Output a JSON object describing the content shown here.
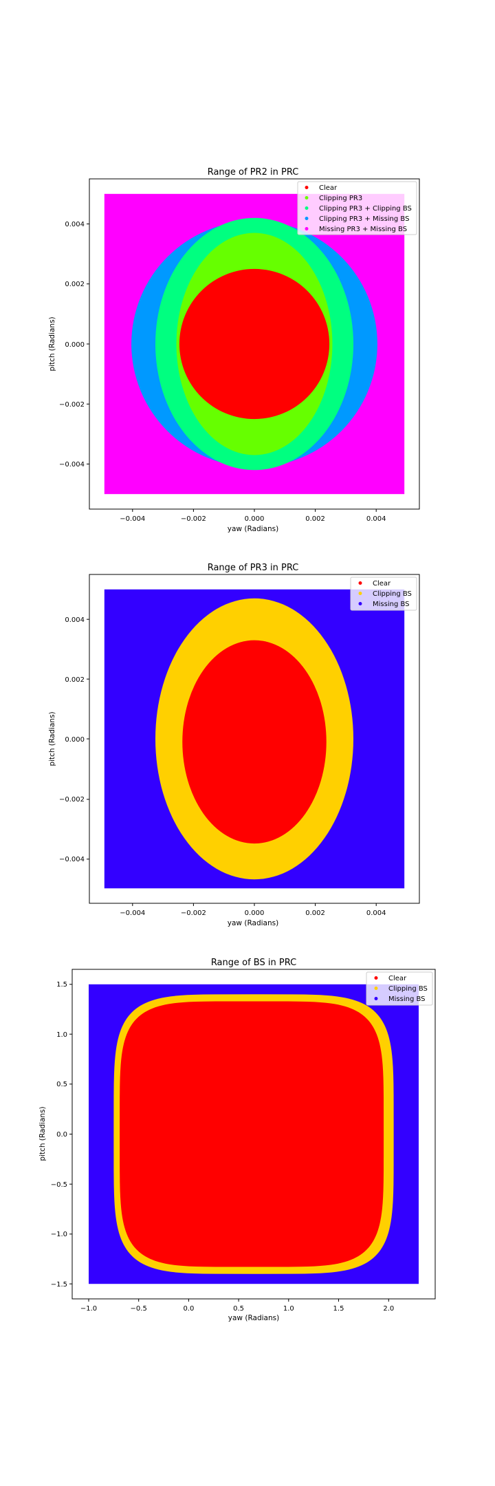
{
  "chart_data": [
    {
      "type": "scatter",
      "title": "Range of PR2 in PRC",
      "xlabel": "yaw (Radians)",
      "ylabel": "pitch (Radians)",
      "xlim": [
        -0.0055,
        0.0055
      ],
      "ylim": [
        -0.0055,
        0.0055
      ],
      "data_extent": {
        "x": [
          -0.005,
          0.005
        ],
        "y": [
          -0.005,
          0.005
        ]
      },
      "xticks": [
        -0.004,
        -0.002,
        0.0,
        0.002,
        0.004
      ],
      "xtick_labels": [
        "−0.004",
        "−0.002",
        "0.000",
        "0.002",
        "0.004"
      ],
      "yticks": [
        -0.004,
        -0.002,
        0.0,
        0.002,
        0.004
      ],
      "ytick_labels": [
        "−0.004",
        "−0.002",
        "0.000",
        "0.002",
        "0.004"
      ],
      "legend_position": "top-right",
      "series": [
        {
          "name": "Clear",
          "color": "#ff0000",
          "region": {
            "shape": "ellipse",
            "cx": 0.0,
            "cy": 0.0,
            "rx": 0.0025,
            "ry": 0.0025
          }
        },
        {
          "name": "Clipping PR3",
          "color": "#66ff00",
          "region": {
            "shape": "ellipse",
            "cx": 0.0,
            "cy": 0.0,
            "rx": 0.0026,
            "ry": 0.0037
          }
        },
        {
          "name": "Clipping PR3 + Clipping BS",
          "color": "#00ff80",
          "region": {
            "shape": "ellipse",
            "cx": 0.0,
            "cy": 0.0,
            "rx": 0.0033,
            "ry": 0.0042
          }
        },
        {
          "name": "Clipping PR3 + Missing BS",
          "color": "#0099ff",
          "region": {
            "shape": "ellipse",
            "cx": 0.0,
            "cy": 0.0,
            "rx": 0.0041,
            "ry": 0.0041
          }
        },
        {
          "name": "Missing PR3 + Missing BS",
          "color": "#ff00ff",
          "region": {
            "shape": "rect",
            "x": [
              -0.005,
              0.005
            ],
            "y": [
              -0.005,
              0.005
            ]
          }
        }
      ]
    },
    {
      "type": "scatter",
      "title": "Range of PR3 in PRC",
      "xlabel": "yaw (Radians)",
      "ylabel": "pitch (Radians)",
      "xlim": [
        -0.0055,
        0.0055
      ],
      "ylim": [
        -0.0055,
        0.0055
      ],
      "data_extent": {
        "x": [
          -0.005,
          0.005
        ],
        "y": [
          -0.005,
          0.005
        ]
      },
      "xticks": [
        -0.004,
        -0.002,
        0.0,
        0.002,
        0.004
      ],
      "xtick_labels": [
        "−0.004",
        "−0.002",
        "0.000",
        "0.002",
        "0.004"
      ],
      "yticks": [
        -0.004,
        -0.002,
        0.0,
        0.002,
        0.004
      ],
      "ytick_labels": [
        "−0.004",
        "−0.002",
        "0.000",
        "0.002",
        "0.004"
      ],
      "legend_position": "top-right",
      "series": [
        {
          "name": "Clear",
          "color": "#ff0000",
          "region": {
            "shape": "ellipse",
            "cx": 0.0,
            "cy": -0.0001,
            "rx": 0.0024,
            "ry": 0.0034
          }
        },
        {
          "name": "Clipping BS",
          "color": "#ffd000",
          "region": {
            "shape": "ellipse",
            "cx": 0.0,
            "cy": 0.0,
            "rx": 0.0033,
            "ry": 0.0047
          }
        },
        {
          "name": "Missing BS",
          "color": "#3300ff",
          "region": {
            "shape": "rect",
            "x": [
              -0.005,
              0.005
            ],
            "y": [
              -0.005,
              0.005
            ]
          }
        }
      ]
    },
    {
      "type": "scatter",
      "title": "Range of BS in PRC",
      "xlabel": "yaw (Radians)",
      "ylabel": "pitch (Radians)",
      "xlim": [
        -1.165,
        2.465
      ],
      "ylim": [
        -1.65,
        1.65
      ],
      "data_extent": {
        "x": [
          -1.0,
          2.3
        ],
        "y": [
          -1.5,
          1.5
        ]
      },
      "xticks": [
        -1.0,
        -0.5,
        0.0,
        0.5,
        1.0,
        1.5,
        2.0
      ],
      "xtick_labels": [
        "−1.0",
        "−0.5",
        "0.0",
        "0.5",
        "1.0",
        "1.5",
        "2.0"
      ],
      "yticks": [
        -1.5,
        -1.0,
        -0.5,
        0.0,
        0.5,
        1.0,
        1.5
      ],
      "ytick_labels": [
        "−1.5",
        "−1.0",
        "−0.5",
        "0.0",
        "0.5",
        "1.0",
        "1.5"
      ],
      "legend_position": "top-right",
      "series": [
        {
          "name": "Clear",
          "color": "#ff0000",
          "region": {
            "shape": "superellipse",
            "cx": 0.63,
            "cy": 0.0,
            "rx": 1.32,
            "ry": 1.33,
            "n": 5
          }
        },
        {
          "name": "Clipping BS",
          "color": "#ffd000",
          "region": {
            "shape": "superellipse",
            "cx": 0.65,
            "cy": 0.0,
            "rx": 1.4,
            "ry": 1.4,
            "n": 5
          }
        },
        {
          "name": "Missing BS",
          "color": "#3300ff",
          "region": {
            "shape": "rect",
            "x": [
              -1.0,
              2.3
            ],
            "y": [
              -1.5,
              1.5
            ]
          }
        }
      ]
    }
  ]
}
